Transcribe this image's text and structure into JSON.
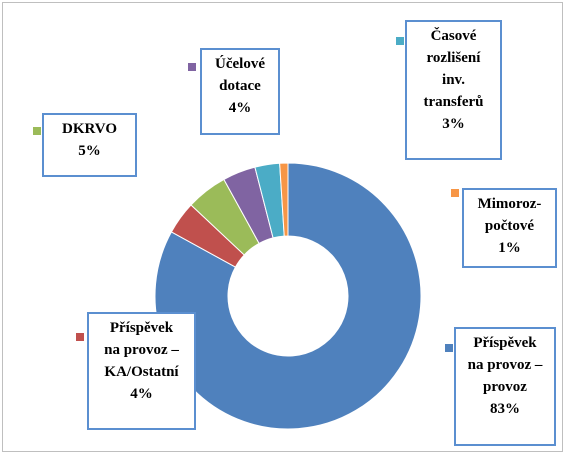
{
  "chart_data": {
    "type": "doughnut",
    "categories": [
      "Příspěvek\nna provoz –\nprovoz",
      "Příspěvek\nna provoz –\nKA/Ostatní",
      "DKRVO",
      "Účelové\ndotace",
      "Časové\nrozlišení\ninv.\ntransferů",
      "Mimoroz-\npočtové"
    ],
    "values": [
      83,
      4,
      5,
      4,
      3,
      1
    ],
    "value_labels": [
      "83%",
      "4%",
      "5%",
      "4%",
      "3%",
      "1%"
    ],
    "colors": [
      "#4f81bd",
      "#c0504d",
      "#9bbb59",
      "#8064a2",
      "#4bacc6",
      "#f79646"
    ]
  }
}
